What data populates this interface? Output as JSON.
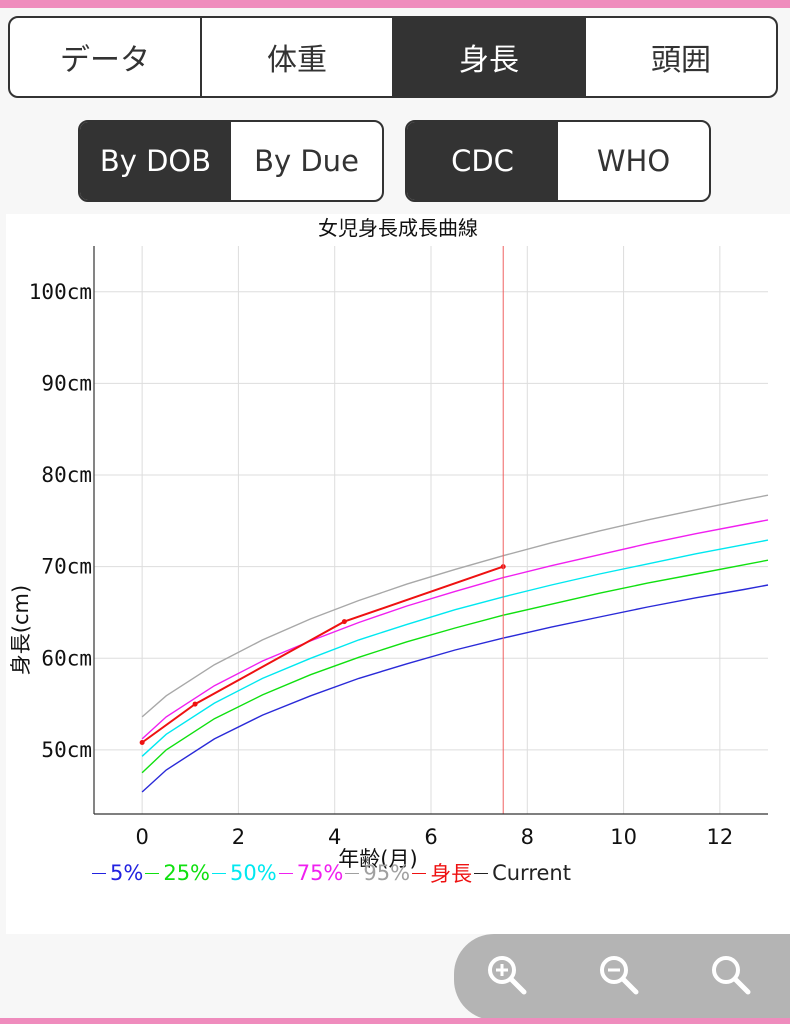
{
  "tabs": [
    {
      "label": "データ",
      "active": false
    },
    {
      "label": "体重",
      "active": false
    },
    {
      "label": "身長",
      "active": true
    },
    {
      "label": "頭囲",
      "active": false
    }
  ],
  "date_mode": {
    "options": [
      {
        "label": "By DOB",
        "active": true
      },
      {
        "label": "By Due",
        "active": false
      }
    ]
  },
  "standard": {
    "options": [
      {
        "label": "CDC",
        "active": true
      },
      {
        "label": "WHO",
        "active": false
      }
    ]
  },
  "chart_data": {
    "type": "line",
    "title": "女児身長成長曲線",
    "xlabel": "年齢(月)",
    "ylabel": "身長(cm)",
    "xlim": [
      -1,
      13
    ],
    "ylim": [
      43,
      105
    ],
    "x_ticks": [
      0,
      2,
      4,
      6,
      8,
      10,
      12
    ],
    "y_ticks": [
      {
        "value": 50,
        "label": "50cm"
      },
      {
        "value": 60,
        "label": "60cm"
      },
      {
        "value": 70,
        "label": "70cm"
      },
      {
        "value": 80,
        "label": "80cm"
      },
      {
        "value": 90,
        "label": "90cm"
      },
      {
        "value": 100,
        "label": "100cm"
      }
    ],
    "grid": true,
    "current_x": 7.5,
    "series": [
      {
        "name": "5%",
        "color": "#2a2ad8",
        "x": [
          0,
          0.5,
          1.5,
          2.5,
          3.5,
          4.5,
          5.5,
          6.5,
          7.5,
          8.5,
          9.5,
          10.5,
          11.5,
          12.5,
          13
        ],
        "values": [
          45.4,
          47.8,
          51.2,
          53.8,
          55.9,
          57.8,
          59.4,
          60.9,
          62.2,
          63.4,
          64.5,
          65.6,
          66.6,
          67.5,
          68.0
        ]
      },
      {
        "name": "25%",
        "color": "#10e010",
        "x": [
          0,
          0.5,
          1.5,
          2.5,
          3.5,
          4.5,
          5.5,
          6.5,
          7.5,
          8.5,
          9.5,
          10.5,
          11.5,
          12.5,
          13
        ],
        "values": [
          47.5,
          50.0,
          53.4,
          56.0,
          58.2,
          60.1,
          61.8,
          63.3,
          64.7,
          65.9,
          67.1,
          68.2,
          69.2,
          70.2,
          70.7
        ]
      },
      {
        "name": "50%",
        "color": "#00e8f0",
        "x": [
          0,
          0.5,
          1.5,
          2.5,
          3.5,
          4.5,
          5.5,
          6.5,
          7.5,
          8.5,
          9.5,
          10.5,
          11.5,
          12.5,
          13
        ],
        "values": [
          49.3,
          51.7,
          55.1,
          57.8,
          60.0,
          62.0,
          63.7,
          65.3,
          66.7,
          68.0,
          69.2,
          70.3,
          71.4,
          72.4,
          72.9
        ]
      },
      {
        "name": "75%",
        "color": "#f020f0",
        "x": [
          0,
          0.5,
          1.5,
          2.5,
          3.5,
          4.5,
          5.5,
          6.5,
          7.5,
          8.5,
          9.5,
          10.5,
          11.5,
          12.5,
          13
        ],
        "values": [
          51.2,
          53.6,
          57.0,
          59.7,
          61.9,
          63.9,
          65.7,
          67.3,
          68.8,
          70.1,
          71.3,
          72.5,
          73.6,
          74.6,
          75.1
        ]
      },
      {
        "name": "95%",
        "color": "#a8a8a8",
        "x": [
          0,
          0.5,
          1.5,
          2.5,
          3.5,
          4.5,
          5.5,
          6.5,
          7.5,
          8.5,
          9.5,
          10.5,
          11.5,
          12.5,
          13
        ],
        "values": [
          53.6,
          55.9,
          59.3,
          62.0,
          64.3,
          66.3,
          68.1,
          69.7,
          71.2,
          72.6,
          73.9,
          75.1,
          76.2,
          77.3,
          77.8
        ]
      },
      {
        "name": "身長",
        "color": "#ee1111",
        "x": [
          0,
          1.1,
          4.2,
          7.5
        ],
        "values": [
          50.8,
          55.0,
          64.0,
          70.0
        ],
        "markers": true
      }
    ],
    "legend": [
      {
        "name": "5%",
        "color": "#2222e0"
      },
      {
        "name": "25%",
        "color": "#10e010"
      },
      {
        "name": "50%",
        "color": "#00e8f0"
      },
      {
        "name": "75%",
        "color": "#f020f0"
      },
      {
        "name": "95%",
        "color": "#a0a0a0"
      },
      {
        "name": "身長",
        "color": "#ee1111"
      },
      {
        "name": "Current",
        "color": "#222222"
      }
    ]
  },
  "zoom": {
    "buttons": [
      {
        "name": "zoom-in-icon"
      },
      {
        "name": "zoom-out-icon"
      },
      {
        "name": "zoom-reset-icon"
      }
    ]
  }
}
